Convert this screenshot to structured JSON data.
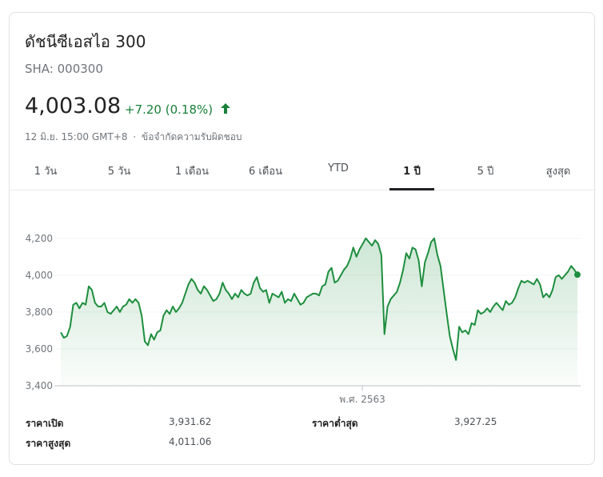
{
  "header": {
    "name": "ดัชนีซีเอสไอ 300",
    "ticker": "SHA: 000300",
    "price": "4,003.08",
    "change": "+7.20 (0.18%)",
    "change_color": "#188038",
    "timestamp": "12 มิ.ย. 15:00 GMT+8",
    "separator": "·",
    "disclaimer": "ข้อจำกัดความรับผิดชอบ"
  },
  "tabs": [
    {
      "label": "1 วัน",
      "active": false
    },
    {
      "label": "5 วัน",
      "active": false
    },
    {
      "label": "1 เดือน",
      "active": false
    },
    {
      "label": "6 เดือน",
      "active": false
    },
    {
      "label": "YTD",
      "active": false
    },
    {
      "label": "1 ปี",
      "active": true
    },
    {
      "label": "5 ปี",
      "active": false
    },
    {
      "label": "สูงสุด",
      "active": false
    }
  ],
  "stats": {
    "open_label": "ราคาเปิด",
    "open_value": "3,931.62",
    "low_label": "ราคาต่ำสุด",
    "low_value": "3,927.25",
    "high_label": "ราคาสูงสุด",
    "high_value": "4,011.06"
  },
  "chart_data": {
    "type": "area",
    "title": "",
    "xlabel": "",
    "ylabel": "",
    "x_tick_labels": [
      "พ.ศ. 2563"
    ],
    "y_ticks": [
      3400,
      3600,
      3800,
      4000,
      4200
    ],
    "y_tick_labels": [
      "3,400",
      "3,600",
      "3,800",
      "4,000",
      "4,200"
    ],
    "ylim": [
      3400,
      4260
    ],
    "grid": true,
    "line_color": "#1e8e3e",
    "series": [
      {
        "values": [
          3690,
          3660,
          3670,
          3720,
          3840,
          3850,
          3820,
          3850,
          3840,
          3940,
          3920,
          3850,
          3830,
          3830,
          3850,
          3800,
          3790,
          3810,
          3830,
          3800,
          3830,
          3840,
          3870,
          3850,
          3870,
          3850,
          3780,
          3640,
          3620,
          3680,
          3650,
          3690,
          3700,
          3780,
          3810,
          3790,
          3830,
          3800,
          3820,
          3850,
          3900,
          3950,
          3980,
          3960,
          3920,
          3900,
          3940,
          3920,
          3890,
          3860,
          3870,
          3900,
          3960,
          3920,
          3900,
          3870,
          3900,
          3880,
          3920,
          3900,
          3890,
          3900,
          3960,
          3990,
          3930,
          3910,
          3920,
          3850,
          3900,
          3890,
          3880,
          3910,
          3850,
          3870,
          3860,
          3900,
          3870,
          3840,
          3850,
          3880,
          3890,
          3900,
          3900,
          3890,
          3940,
          3950,
          4020,
          4040,
          3960,
          3970,
          4000,
          4030,
          4050,
          4090,
          4150,
          4100,
          4140,
          4170,
          4200,
          4180,
          4160,
          4190,
          4170,
          4110,
          3680,
          3830,
          3870,
          3890,
          3910,
          3960,
          4030,
          4120,
          4090,
          4150,
          4140,
          4080,
          3940,
          4070,
          4120,
          4180,
          4200,
          4110,
          4050,
          3920,
          3790,
          3670,
          3600,
          3540,
          3720,
          3690,
          3700,
          3680,
          3740,
          3730,
          3810,
          3790,
          3800,
          3820,
          3800,
          3830,
          3850,
          3830,
          3810,
          3860,
          3840,
          3850,
          3880,
          3930,
          3970,
          3960,
          3970,
          3960,
          3950,
          3980,
          3950,
          3880,
          3900,
          3880,
          3920,
          3990,
          4000,
          3980,
          4000,
          4020,
          4050,
          4030,
          4003
        ]
      }
    ]
  }
}
